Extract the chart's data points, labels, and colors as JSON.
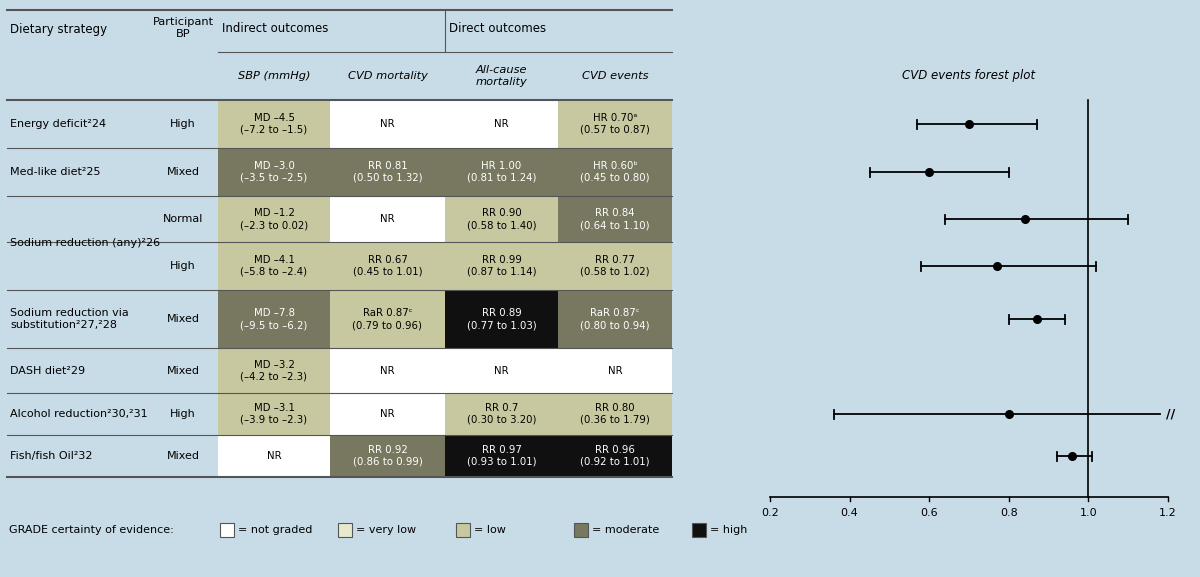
{
  "background_color": "#c8dce8",
  "fig_width": 12.0,
  "fig_height": 5.77,
  "grade_color_map": {
    "white": "#ffffff",
    "very_low": "#e8e8cc",
    "low": "#c8c8a0",
    "moderate": "#787860",
    "high": "#101010"
  },
  "cells": [
    {
      "row": 0,
      "col": 0,
      "text": "MD –4.5\n(–7.2 to –1.5)",
      "grade": "low",
      "text_color": "#000000"
    },
    {
      "row": 0,
      "col": 1,
      "text": "NR",
      "grade": "white",
      "text_color": "#000000"
    },
    {
      "row": 0,
      "col": 2,
      "text": "NR",
      "grade": "white",
      "text_color": "#000000"
    },
    {
      "row": 0,
      "col": 3,
      "text": "HR 0.70ᵃ\n(0.57 to 0.87)",
      "grade": "low",
      "text_color": "#000000"
    },
    {
      "row": 1,
      "col": 0,
      "text": "MD –3.0\n(–3.5 to –2.5)",
      "grade": "moderate",
      "text_color": "#ffffff"
    },
    {
      "row": 1,
      "col": 1,
      "text": "RR 0.81\n(0.50 to 1.32)",
      "grade": "moderate",
      "text_color": "#ffffff"
    },
    {
      "row": 1,
      "col": 2,
      "text": "HR 1.00\n(0.81 to 1.24)",
      "grade": "moderate",
      "text_color": "#ffffff"
    },
    {
      "row": 1,
      "col": 3,
      "text": "HR 0.60ᵇ\n(0.45 to 0.80)",
      "grade": "moderate",
      "text_color": "#ffffff"
    },
    {
      "row": 2,
      "col": 0,
      "text": "MD –1.2\n(–2.3 to 0.02)",
      "grade": "low",
      "text_color": "#000000"
    },
    {
      "row": 2,
      "col": 1,
      "text": "NR",
      "grade": "white",
      "text_color": "#000000"
    },
    {
      "row": 2,
      "col": 2,
      "text": "RR 0.90\n(0.58 to 1.40)",
      "grade": "low",
      "text_color": "#000000"
    },
    {
      "row": 2,
      "col": 3,
      "text": "RR 0.84\n(0.64 to 1.10)",
      "grade": "moderate",
      "text_color": "#ffffff"
    },
    {
      "row": 3,
      "col": 0,
      "text": "MD –4.1\n(–5.8 to –2.4)",
      "grade": "low",
      "text_color": "#000000"
    },
    {
      "row": 3,
      "col": 1,
      "text": "RR 0.67\n(0.45 to 1.01)",
      "grade": "low",
      "text_color": "#000000"
    },
    {
      "row": 3,
      "col": 2,
      "text": "RR 0.99\n(0.87 to 1.14)",
      "grade": "low",
      "text_color": "#000000"
    },
    {
      "row": 3,
      "col": 3,
      "text": "RR 0.77\n(0.58 to 1.02)",
      "grade": "low",
      "text_color": "#000000"
    },
    {
      "row": 4,
      "col": 0,
      "text": "MD –7.8\n(–9.5 to –6.2)",
      "grade": "moderate",
      "text_color": "#ffffff"
    },
    {
      "row": 4,
      "col": 1,
      "text": "RaR 0.87ᶜ\n(0.79 to 0.96)",
      "grade": "low",
      "text_color": "#000000"
    },
    {
      "row": 4,
      "col": 2,
      "text": "RR 0.89\n(0.77 to 1.03)",
      "grade": "high",
      "text_color": "#ffffff"
    },
    {
      "row": 4,
      "col": 3,
      "text": "RaR 0.87ᶜ\n(0.80 to 0.94)",
      "grade": "moderate",
      "text_color": "#ffffff"
    },
    {
      "row": 5,
      "col": 0,
      "text": "MD –3.2\n(–4.2 to –2.3)",
      "grade": "low",
      "text_color": "#000000"
    },
    {
      "row": 5,
      "col": 1,
      "text": "NR",
      "grade": "white",
      "text_color": "#000000"
    },
    {
      "row": 5,
      "col": 2,
      "text": "NR",
      "grade": "white",
      "text_color": "#000000"
    },
    {
      "row": 5,
      "col": 3,
      "text": "NR",
      "grade": "white",
      "text_color": "#000000"
    },
    {
      "row": 6,
      "col": 0,
      "text": "MD –3.1\n(–3.9 to –2.3)",
      "grade": "low",
      "text_color": "#000000"
    },
    {
      "row": 6,
      "col": 1,
      "text": "NR",
      "grade": "white",
      "text_color": "#000000"
    },
    {
      "row": 6,
      "col": 2,
      "text": "RR 0.7\n(0.30 to 3.20)",
      "grade": "low",
      "text_color": "#000000"
    },
    {
      "row": 6,
      "col": 3,
      "text": "RR 0.80\n(0.36 to 1.79)",
      "grade": "low",
      "text_color": "#000000"
    },
    {
      "row": 7,
      "col": 0,
      "text": "NR",
      "grade": "white",
      "text_color": "#000000"
    },
    {
      "row": 7,
      "col": 1,
      "text": "RR 0.92\n(0.86 to 0.99)",
      "grade": "moderate",
      "text_color": "#ffffff"
    },
    {
      "row": 7,
      "col": 2,
      "text": "RR 0.97\n(0.93 to 1.01)",
      "grade": "high",
      "text_color": "#ffffff"
    },
    {
      "row": 7,
      "col": 3,
      "text": "RR 0.96\n(0.92 to 1.01)",
      "grade": "high",
      "text_color": "#ffffff"
    }
  ],
  "row_labels": [
    {
      "text": "Energy deficit²24",
      "rows": [
        0
      ],
      "merge": false
    },
    {
      "text": "Med-like diet²25",
      "rows": [
        1
      ],
      "merge": false
    },
    {
      "text": "Sodium reduction (any)²26",
      "rows": [
        2,
        3
      ],
      "merge": true
    },
    {
      "text": "Sodium reduction via\nsubstitution²27,²28",
      "rows": [
        4
      ],
      "merge": false
    },
    {
      "text": "DASH diet²29",
      "rows": [
        5
      ],
      "merge": false
    },
    {
      "text": "Alcohol reduction²30,²31",
      "rows": [
        6
      ],
      "merge": false
    },
    {
      "text": "Fish/fish Oil²32",
      "rows": [
        7
      ],
      "merge": false
    }
  ],
  "bp_labels": [
    {
      "text": "High",
      "row": 0
    },
    {
      "text": "Mixed",
      "row": 1
    },
    {
      "text": "Normal",
      "row": 2
    },
    {
      "text": "High",
      "row": 3
    },
    {
      "text": "Mixed",
      "row": 4
    },
    {
      "text": "Mixed",
      "row": 5
    },
    {
      "text": "High",
      "row": 6
    },
    {
      "text": "Mixed",
      "row": 7
    }
  ],
  "forest_points": [
    {
      "row": 0,
      "point": 0.7,
      "ci_low": 0.57,
      "ci_high": 0.87,
      "plot": true,
      "extended": false
    },
    {
      "row": 1,
      "point": 0.6,
      "ci_low": 0.45,
      "ci_high": 0.8,
      "plot": true,
      "extended": false
    },
    {
      "row": 2,
      "point": 0.84,
      "ci_low": 0.64,
      "ci_high": 1.1,
      "plot": true,
      "extended": false
    },
    {
      "row": 3,
      "point": 0.77,
      "ci_low": 0.58,
      "ci_high": 1.02,
      "plot": true,
      "extended": false
    },
    {
      "row": 4,
      "point": 0.87,
      "ci_low": 0.8,
      "ci_high": 0.94,
      "plot": true,
      "extended": false
    },
    {
      "row": 5,
      "point": null,
      "ci_low": null,
      "ci_high": null,
      "plot": false,
      "extended": false
    },
    {
      "row": 6,
      "point": 0.8,
      "ci_low": 0.36,
      "ci_high": 1.79,
      "plot": true,
      "extended": true
    },
    {
      "row": 7,
      "point": 0.96,
      "ci_low": 0.92,
      "ci_high": 1.01,
      "plot": true,
      "extended": false
    }
  ],
  "x_axis_ticks": [
    0.2,
    0.4,
    0.6,
    0.8,
    1.0,
    1.2
  ],
  "grade_legend": [
    {
      "label": "= not graded",
      "color": "#ffffff"
    },
    {
      "label": "= very low",
      "color": "#e8e8cc"
    },
    {
      "label": "= low",
      "color": "#c8c8a0"
    },
    {
      "label": "= moderate",
      "color": "#787860"
    },
    {
      "label": "= high",
      "color": "#101010"
    }
  ]
}
